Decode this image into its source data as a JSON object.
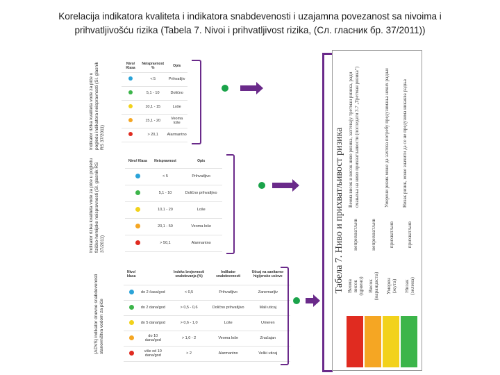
{
  "title_line1": "Korelacija indikatora kvaliteta i indikatora snabdevenosti i uzajamna povezanost sa nivoima  i",
  "title_line2": "prihvatljivošću rizika  (Tabela 7. Nivoi i prihvatljivost rizika, (Сл. гласник бр.  37/2011))",
  "colors": {
    "blue": "#2aa3d8",
    "green": "#3cb54a",
    "yellow": "#f2d21b",
    "orange": "#f5a623",
    "red": "#e02b20",
    "accent": "#6a2a8a"
  },
  "table1": {
    "caption": "Indikator rizika kvaliteta vode za piće u pogledu indikatora neispravnosti (Sl. glasnik RS 37/2011)",
    "headers": [
      "Nivo/ Klasa",
      "Neispravnost %",
      "Opis"
    ],
    "rows": [
      [
        "< 5",
        "Prihvatljiv"
      ],
      [
        "5,1 - 10",
        "Dolično"
      ],
      [
        "10,1 - 15",
        "Loše"
      ],
      [
        "15,1 - 20",
        "Veoma loše"
      ],
      [
        "> 20,1",
        "Alarmantno"
      ]
    ]
  },
  "table2": {
    "caption": "Indikator rizika kvaliteta vode za piće u pogledu fizičko-hemijske neispravnosti (Sl. glasnik RS 37/2011)",
    "headers": [
      "Nivo/ Klasa",
      "Neispravnost",
      "Opis"
    ],
    "rows": [
      [
        "< 5",
        "Prihvatljivo"
      ],
      [
        "5,1 - 10",
        "Dolično prihvatljivo"
      ],
      [
        "10,1 - 20",
        "Loše"
      ],
      [
        "20,1 - 50",
        "Veoma loše"
      ],
      [
        "> 50,1",
        "Alarmantno"
      ]
    ]
  },
  "table3": {
    "caption": "(ADVS) indikator dnevne snabdevenosti stanovništva vodom za piće",
    "headers": [
      "Nivo/ klasa",
      "Indeks brojevnosti snabdevanja (%)",
      "Indikator snabdevenosti",
      "Uticaj na sanitarno-higijenske uslove"
    ],
    "rows": [
      [
        "do 2 časa/god",
        "< 0,5",
        "Prihvatljivo",
        "Zanemarljiv"
      ],
      [
        "do 2 dana/god",
        "> 0,5 - 0,6",
        "Dolično prihvatljivo",
        "Mali uticaj"
      ],
      [
        "do 5 dana/god",
        "> 0,6 - 1,0",
        "Loše",
        "Umeren"
      ],
      [
        "do 10 dana/god",
        "> 1,0 - 2",
        "Veoma loše",
        "Značajan"
      ],
      [
        "više od 10 dana/god",
        "> 2",
        "Alarmantno",
        "Veliki uticaj"
      ]
    ]
  },
  "serbian_table": {
    "caption": "Табела 7. Ниво и прихватљивост ризика",
    "levels": [
      "Веома висок (црвено)",
      "Висок (наранџаста)",
      "Умерен (жута)",
      "Низак (зелена)"
    ],
    "acceptability": [
      "неприхватљив",
      "неприхватљив",
      "прихватљив",
      "прихватљив"
    ],
    "descriptions": [
      "Веома висок и висок ниво ризика, захтевају третман ризика, ради смањења на ниво прихватљивости (погледати 3.7 „Третман ризика“)",
      "Умерени ризик може да захтева потребу предузимања неких радњи",
      "Низак ризик, може значити да се не предузима никаква радња"
    ]
  }
}
